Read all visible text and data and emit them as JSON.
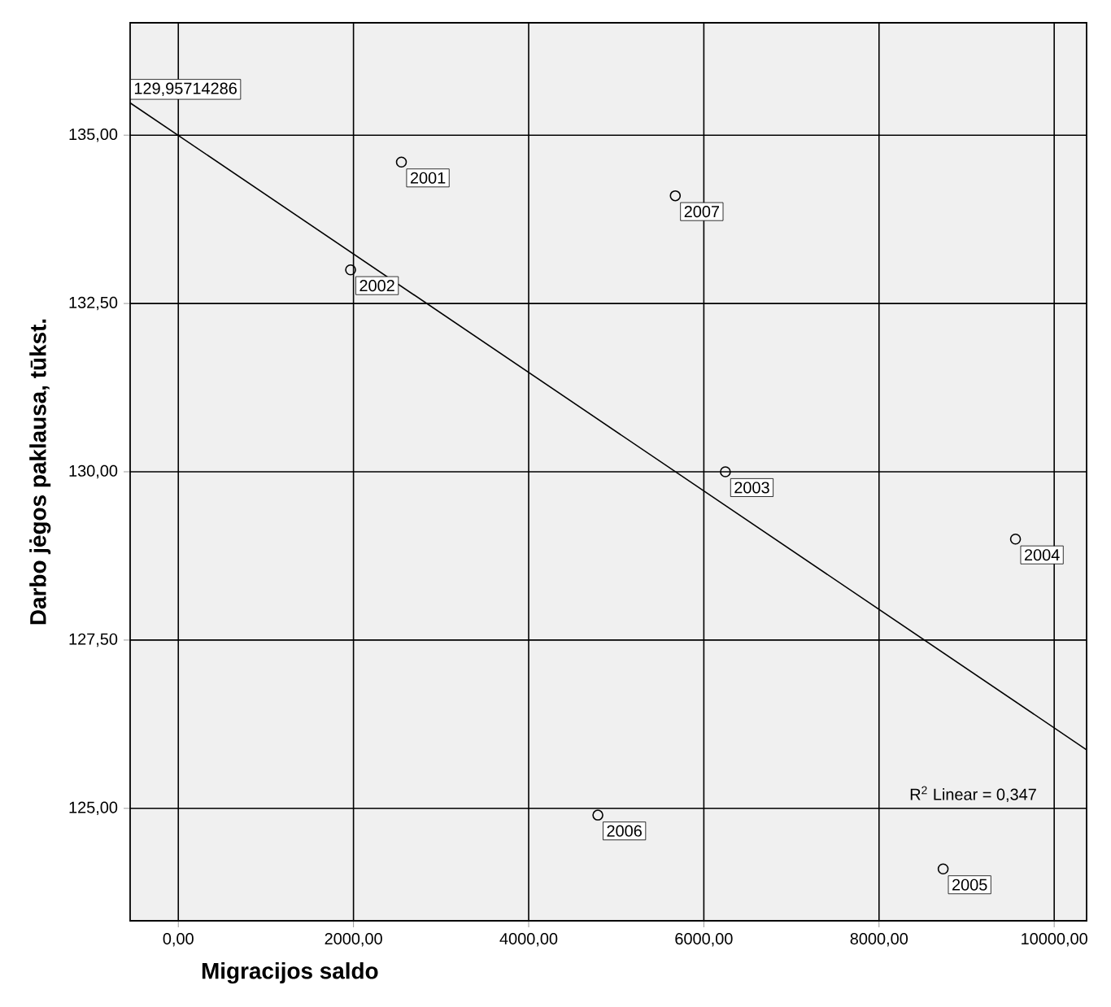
{
  "chart_data": {
    "type": "scatter",
    "xlabel": "Migracijos saldo",
    "ylabel": "Darbo jėgos paklausa, tūkst.",
    "series": [
      {
        "color": "#000000",
        "marker": "circle",
        "x": [
          2547,
          1967,
          6246,
          9558,
          8732,
          4790,
          5674
        ],
        "values": [
          134.6,
          133.0,
          130.0,
          129.0,
          124.1,
          124.9,
          134.1
        ]
      },
      {
        "type": "line",
        "color": "#000000",
        "marker": "none",
        "line_style": "solid",
        "x": [
          -550,
          10370
        ],
        "values": [
          135.48,
          125.87
        ]
      }
    ],
    "xlim": [
      -550,
      10370
    ],
    "ylim": [
      123.33,
      136.67
    ],
    "xticks": [
      {
        "value": 0,
        "label": "0,00"
      },
      {
        "value": 2000,
        "label": "2000,00"
      },
      {
        "value": 4000,
        "label": "4000,00"
      },
      {
        "value": 6000,
        "label": "6000,00"
      },
      {
        "value": 8000,
        "label": "8000,00"
      },
      {
        "value": 10000,
        "label": "10000,00"
      }
    ],
    "yticks": [
      {
        "value": 125,
        "label": "125,00"
      },
      {
        "value": 127.5,
        "label": "127,50"
      },
      {
        "value": 130,
        "label": "130,00"
      },
      {
        "value": 132.5,
        "label": "132,50"
      },
      {
        "value": 135,
        "label": "135,00"
      }
    ],
    "grid": true,
    "annotations": [
      {
        "text": "129,95714286",
        "x": -550,
        "y": 135.48
      },
      {
        "text": "2001",
        "x": 2547,
        "y": 134.6
      },
      {
        "text": "2002",
        "x": 1967,
        "y": 133.0
      },
      {
        "text": "2003",
        "x": 6246,
        "y": 130.0
      },
      {
        "text": "2004",
        "x": 9558,
        "y": 129.0
      },
      {
        "text": "2005",
        "x": 8732,
        "y": 124.1
      },
      {
        "text": "2006",
        "x": 4790,
        "y": 124.9
      },
      {
        "text": "2007",
        "x": 5674,
        "y": 134.1
      },
      "R$^{2}$ Linear = 0,347"
    ]
  }
}
